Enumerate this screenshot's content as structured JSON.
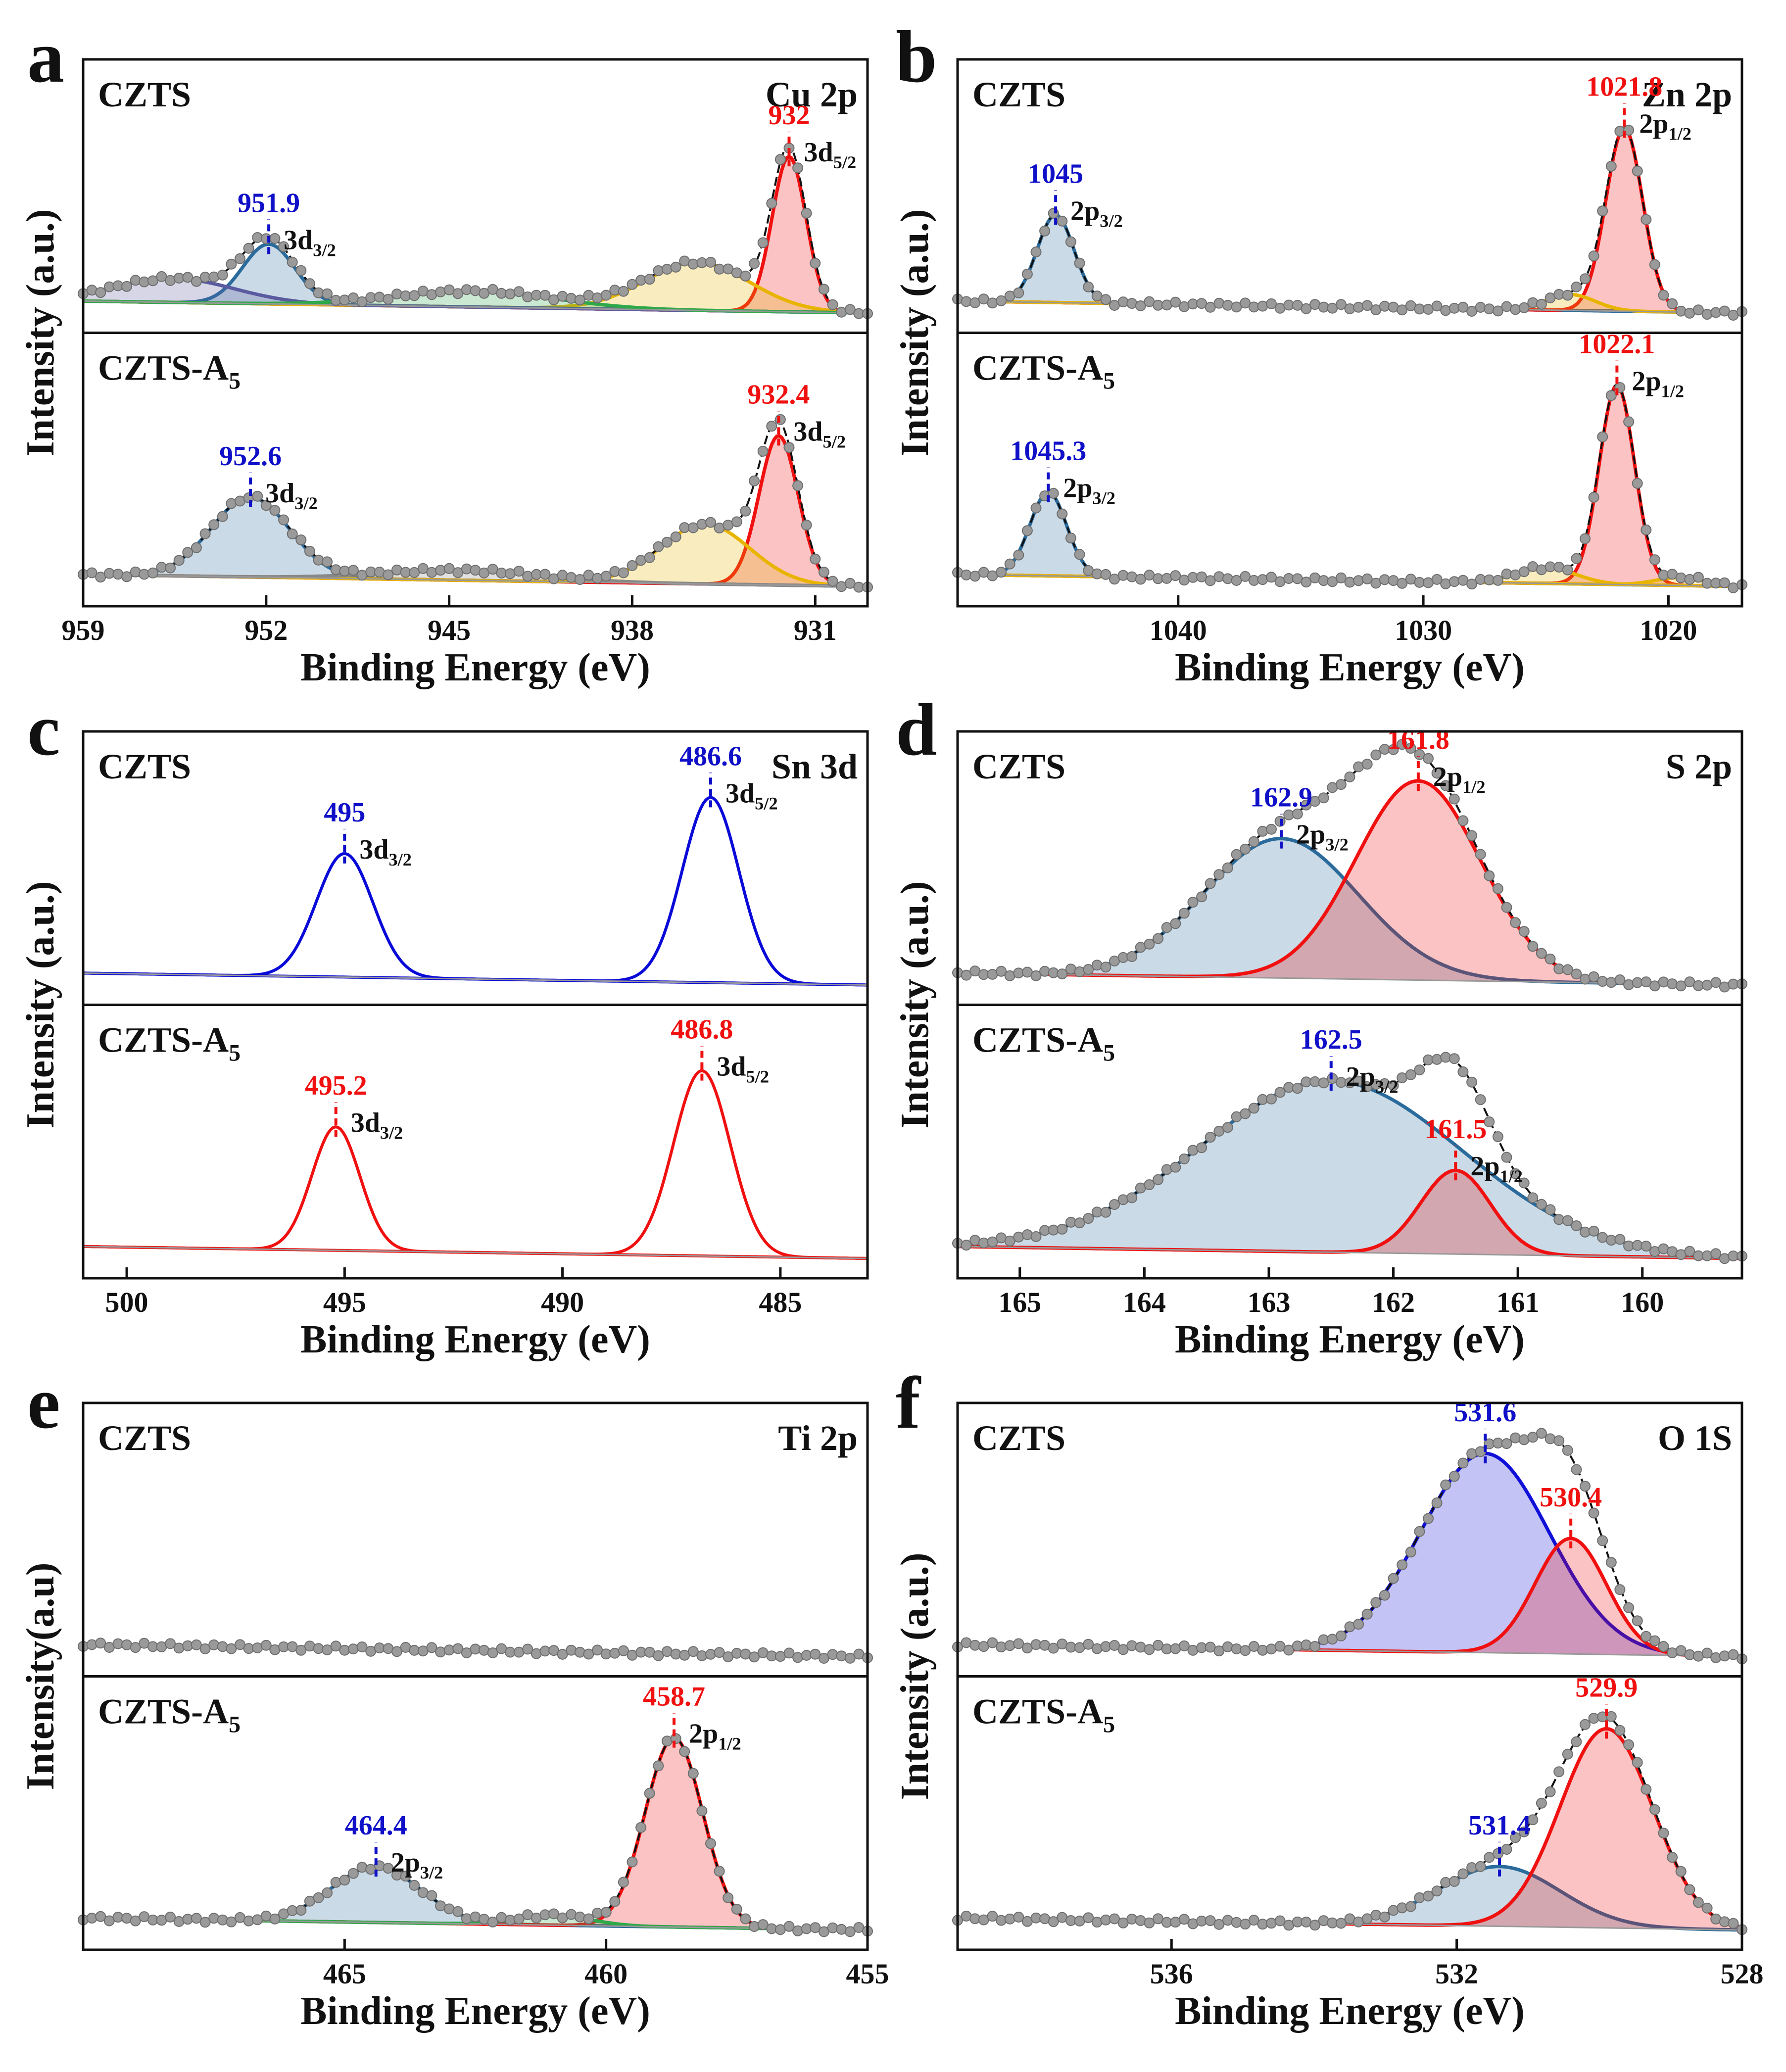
{
  "chart_data": [
    {
      "type": "line",
      "panel": "a",
      "element": "Cu 2p",
      "xlabel": "Binding Energy (eV)",
      "ylabel": "Intensity (a.u.)",
      "xlim": [
        959,
        929
      ],
      "xticks": [
        959,
        952,
        945,
        938,
        931
      ],
      "reversed_x": true,
      "series": [
        {
          "name": "CZTS",
          "peaks": [
            {
              "center": 951.9,
              "height": 0.3,
              "width": 1.0,
              "color": "#2a6b9c",
              "label": "951.9",
              "label_color": "#1010c8",
              "annotation": "3d3/2"
            },
            {
              "center": 932.0,
              "height": 0.78,
              "width": 0.65,
              "color": "#f01010",
              "label": "932",
              "label_color": "#f01010",
              "annotation": "3d5/2"
            },
            {
              "center": 935.5,
              "height": 0.24,
              "width": 2.0,
              "color": "#e8b400"
            },
            {
              "center": 955.5,
              "height": 0.12,
              "width": 2.3,
              "color": "#5a5aa0"
            },
            {
              "center": 944.0,
              "height": 0.08,
              "width": 3.0,
              "color": "#2fa84a"
            }
          ]
        },
        {
          "name": "CZTS-A5",
          "peaks": [
            {
              "center": 952.6,
              "height": 0.4,
              "width": 1.5,
              "color": "#2a6b9c",
              "label": "952.6",
              "label_color": "#1010c8",
              "annotation": "3d3/2"
            },
            {
              "center": 932.4,
              "height": 0.75,
              "width": 0.75,
              "color": "#f01010",
              "label": "932.4",
              "label_color": "#f01010",
              "annotation": "3d5/2"
            },
            {
              "center": 935.2,
              "height": 0.3,
              "width": 1.7,
              "color": "#e8b400"
            },
            {
              "center": 944.5,
              "height": 0.05,
              "width": 3.0,
              "color": "#888888"
            }
          ]
        }
      ]
    },
    {
      "type": "line",
      "panel": "b",
      "element": "Zn 2p",
      "xlabel": "Binding Energy (eV)",
      "ylabel": "Intensity (a.u.)",
      "xlim": [
        1049,
        1017
      ],
      "xticks": [
        1040,
        1030,
        1020
      ],
      "reversed_x": true,
      "series": [
        {
          "name": "CZTS",
          "peaks": [
            {
              "center": 1045.0,
              "height": 0.44,
              "width": 0.75,
              "color": "#2a6b9c",
              "label": "1045",
              "label_color": "#1010c8",
              "annotation": "2p3/2"
            },
            {
              "center": 1021.8,
              "height": 0.92,
              "width": 0.75,
              "color": "#f01010",
              "label": "1021.8",
              "label_color": "#f01010",
              "annotation": "2p1/2"
            },
            {
              "center": 1024.0,
              "height": 0.08,
              "width": 1.0,
              "color": "#e8b400"
            }
          ]
        },
        {
          "name": "CZTS-A5",
          "peaks": [
            {
              "center": 1045.3,
              "height": 0.42,
              "width": 0.75,
              "color": "#2a6b9c",
              "label": "1045.3",
              "label_color": "#1010c8",
              "annotation": "2p3/2"
            },
            {
              "center": 1022.1,
              "height": 1.0,
              "width": 0.72,
              "color": "#f01010",
              "label": "1022.1",
              "label_color": "#f01010",
              "annotation": "2p1/2"
            },
            {
              "center": 1025.0,
              "height": 0.08,
              "width": 1.2,
              "color": "#e8b400"
            },
            {
              "center": 1019.5,
              "height": 0.04,
              "width": 1.0,
              "color": "#e8b400"
            }
          ]
        }
      ]
    },
    {
      "type": "line",
      "panel": "c",
      "element": "Sn 3d",
      "xlabel": "Binding Energy (eV)",
      "ylabel": "Intensity (a.u.)",
      "xlim": [
        501,
        483
      ],
      "xticks": [
        500,
        495,
        490,
        485
      ],
      "reversed_x": true,
      "series": [
        {
          "name": "CZTS",
          "color": "#0a0ad8",
          "peaks": [
            {
              "center": 495.0,
              "height": 0.62,
              "width": 0.65,
              "label": "495",
              "label_color": "#1010c8",
              "annotation": "3d3/2"
            },
            {
              "center": 486.6,
              "height": 0.93,
              "width": 0.65,
              "label": "486.6",
              "label_color": "#1010c8",
              "annotation": "3d5/2"
            }
          ]
        },
        {
          "name": "CZTS-A5",
          "color": "#f01010",
          "peaks": [
            {
              "center": 495.2,
              "height": 0.62,
              "width": 0.55,
              "label": "495.2",
              "label_color": "#f01010",
              "annotation": "3d3/2"
            },
            {
              "center": 486.8,
              "height": 0.93,
              "width": 0.65,
              "label": "486.8",
              "label_color": "#f01010",
              "annotation": "3d5/2"
            }
          ]
        }
      ]
    },
    {
      "type": "line",
      "panel": "d",
      "element": "S 2p",
      "xlabel": "Binding Energy (eV)",
      "ylabel": "Intensity (a.u.)",
      "xlim": [
        165.5,
        159.2
      ],
      "xticks": [
        165,
        164,
        163,
        162,
        161,
        160
      ],
      "reversed_x": true,
      "series": [
        {
          "name": "CZTS",
          "peaks": [
            {
              "center": 162.9,
              "height": 0.7,
              "width": 0.62,
              "color": "#2a6b9c",
              "label": "162.9",
              "label_color": "#1010c8",
              "annotation": "2p3/2"
            },
            {
              "center": 161.8,
              "height": 1.0,
              "width": 0.5,
              "color": "#f01010",
              "label": "161.8",
              "label_color": "#f01010",
              "annotation": "2p1/2"
            }
          ]
        },
        {
          "name": "CZTS-A5",
          "peaks": [
            {
              "center": 162.5,
              "height": 0.86,
              "width": 1.05,
              "color": "#2a6b9c",
              "label": "162.5",
              "label_color": "#1010c8",
              "annotation": "2p3/2"
            },
            {
              "center": 161.5,
              "height": 0.42,
              "width": 0.28,
              "color": "#f01010",
              "label": "161.5",
              "label_color": "#f01010",
              "annotation": "2p1/2"
            }
          ]
        }
      ]
    },
    {
      "type": "line",
      "panel": "e",
      "element": "Ti 2p",
      "xlabel": "Binding Energy (eV)",
      "ylabel": "Intensity(a.u)",
      "xlim": [
        470,
        455
      ],
      "xticks": [
        465,
        460,
        455
      ],
      "reversed_x": true,
      "series": [
        {
          "name": "CZTS",
          "peaks": []
        },
        {
          "name": "CZTS-A5",
          "peaks": [
            {
              "center": 464.4,
              "height": 0.28,
              "width": 0.85,
              "color": "#2a6b9c",
              "label": "464.4",
              "label_color": "#1010c8",
              "annotation": "2p3/2"
            },
            {
              "center": 458.7,
              "height": 0.95,
              "width": 0.55,
              "color": "#f01010",
              "label": "458.7",
              "label_color": "#f01010",
              "annotation": "2p1/2"
            },
            {
              "center": 461.0,
              "height": 0.05,
              "width": 0.7,
              "color": "#2fa84a"
            }
          ]
        }
      ]
    },
    {
      "type": "line",
      "panel": "f",
      "element": "O 1S",
      "xlabel": "Binding Energy (eV)",
      "ylabel": "Intensity (a.u.)",
      "xlim": [
        539,
        528
      ],
      "xticks": [
        536,
        532,
        528
      ],
      "reversed_x": true,
      "series": [
        {
          "name": "CZTS",
          "peaks": [
            {
              "center": 531.6,
              "height": 1.0,
              "width": 0.9,
              "color": "#1010d8",
              "label": "531.6",
              "label_color": "#1010c8"
            },
            {
              "center": 530.4,
              "height": 0.58,
              "width": 0.5,
              "color": "#f01010",
              "label": "530.4",
              "label_color": "#f01010"
            }
          ]
        },
        {
          "name": "CZTS-A5",
          "peaks": [
            {
              "center": 531.4,
              "height": 0.3,
              "width": 0.85,
              "color": "#2a6b9c",
              "label": "531.4",
              "label_color": "#1010c8"
            },
            {
              "center": 529.9,
              "height": 1.0,
              "width": 0.65,
              "color": "#f01010",
              "label": "529.9",
              "label_color": "#f01010"
            }
          ]
        }
      ]
    }
  ]
}
